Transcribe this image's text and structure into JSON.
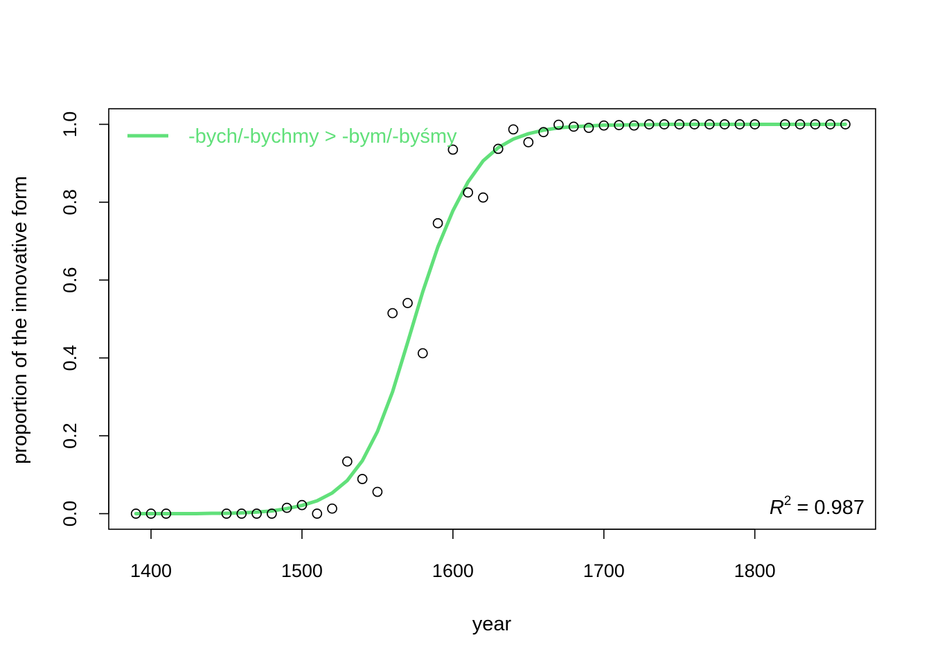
{
  "chart_data": {
    "type": "scatter",
    "xlabel": "year",
    "ylabel": "proportion of the innovative form",
    "xlim": [
      1372,
      1880
    ],
    "ylim": [
      -0.04,
      1.04
    ],
    "x_ticks": [
      1400,
      1500,
      1600,
      1700,
      1800
    ],
    "y_ticks": [
      0.0,
      0.2,
      0.4,
      0.6,
      0.8,
      1.0
    ],
    "x_tick_labels": [
      "1400",
      "1500",
      "1600",
      "1700",
      "1800"
    ],
    "y_tick_labels": [
      "0.0",
      "0.2",
      "0.4",
      "0.6",
      "0.8",
      "1.0"
    ],
    "grid": false,
    "legend": {
      "position": "top-left",
      "label": "-bych/-bychmy > -bym/-byśmy",
      "color": "#61e07a"
    },
    "annotation": {
      "symbol": "R",
      "exponent": "2",
      "text": " = 0.987",
      "position": "bottom-right"
    },
    "series": [
      {
        "kind": "points",
        "marker": "open-circle",
        "color": "#000000",
        "x": [
          1390,
          1400,
          1410,
          1450,
          1460,
          1470,
          1480,
          1490,
          1500,
          1510,
          1520,
          1530,
          1540,
          1550,
          1560,
          1570,
          1580,
          1590,
          1600,
          1610,
          1620,
          1630,
          1640,
          1650,
          1660,
          1670,
          1680,
          1690,
          1700,
          1710,
          1720,
          1730,
          1740,
          1750,
          1760,
          1770,
          1780,
          1790,
          1800,
          1820,
          1830,
          1840,
          1850,
          1860
        ],
        "y": [
          0.0,
          0.0,
          0.0,
          0.0,
          0.0,
          0.0,
          0.0,
          0.015,
          0.022,
          0.0,
          0.013,
          0.134,
          0.089,
          0.056,
          0.515,
          0.541,
          0.412,
          0.746,
          0.935,
          0.825,
          0.812,
          0.937,
          0.987,
          0.954,
          0.98,
          0.999,
          0.994,
          0.991,
          0.997,
          0.998,
          0.997,
          1.0,
          1.0,
          1.0,
          1.0,
          1.0,
          1.0,
          1.0,
          1.0,
          1.0,
          1.0,
          1.0,
          1.0,
          1.0
        ]
      },
      {
        "name": "-bych/-bychmy > -bym/-byśmy",
        "kind": "line",
        "color": "#61e07a",
        "x": [
          1390,
          1400,
          1410,
          1420,
          1430,
          1440,
          1450,
          1460,
          1470,
          1480,
          1490,
          1500,
          1510,
          1520,
          1530,
          1540,
          1550,
          1560,
          1570,
          1580,
          1590,
          1600,
          1610,
          1620,
          1630,
          1640,
          1650,
          1660,
          1670,
          1680,
          1690,
          1700,
          1710,
          1720,
          1730,
          1740,
          1750,
          1760,
          1770,
          1780,
          1790,
          1800,
          1810,
          1820,
          1830,
          1840,
          1850,
          1860
        ],
        "y": [
          0.0,
          0.0,
          0.0,
          0.0,
          0.0,
          0.001,
          0.001,
          0.002,
          0.004,
          0.007,
          0.013,
          0.021,
          0.033,
          0.053,
          0.085,
          0.136,
          0.211,
          0.313,
          0.44,
          0.57,
          0.685,
          0.778,
          0.852,
          0.906,
          0.94,
          0.962,
          0.976,
          0.985,
          0.991,
          0.994,
          0.996,
          0.998,
          0.998,
          0.999,
          0.999,
          1.0,
          1.0,
          1.0,
          1.0,
          1.0,
          1.0,
          1.0,
          1.0,
          1.0,
          1.0,
          1.0,
          1.0,
          1.0
        ]
      }
    ]
  }
}
